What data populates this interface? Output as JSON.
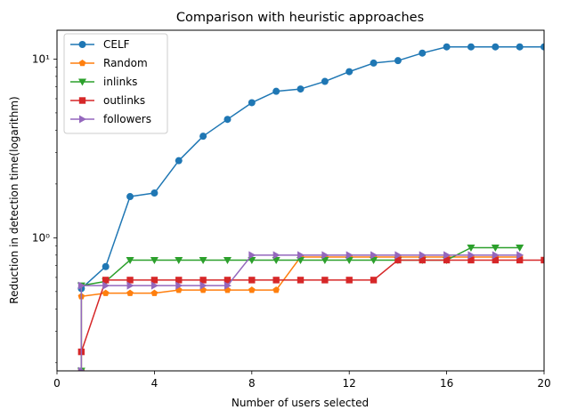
{
  "chart_data": {
    "type": "line",
    "title": "Comparison with heuristic approaches",
    "xlabel": "Number of users selected",
    "ylabel": "Reduction in detection time(logarithm)",
    "xlim": [
      0,
      20
    ],
    "ylim": [
      0.18,
      14.5
    ],
    "yscale": "log",
    "grid": false,
    "legend_position": "top-left",
    "x_ticks": [
      0,
      4,
      8,
      12,
      16,
      20
    ],
    "x_tick_labels": [
      "0",
      "4",
      "8",
      "12",
      "16",
      "20"
    ],
    "y_major_ticks": [
      1,
      10
    ],
    "y_tick_labels": [
      "10⁰",
      "10¹"
    ],
    "series": [
      {
        "name": "CELF",
        "color": "#1f77b4",
        "marker": "circle",
        "x": [
          1,
          2,
          3,
          4,
          5,
          6,
          7,
          8,
          9,
          10,
          11,
          12,
          13,
          14,
          15,
          16,
          17,
          18,
          19,
          20
        ],
        "y": [
          0.52,
          0.69,
          1.7,
          1.78,
          2.7,
          3.7,
          4.6,
          5.7,
          6.6,
          6.8,
          7.5,
          8.5,
          9.5,
          9.8,
          10.8,
          11.7,
          11.7,
          11.7,
          11.7,
          11.7
        ]
      },
      {
        "name": "Random",
        "color": "#ff7f0e",
        "marker": "pentagon",
        "x": [
          1,
          1,
          2,
          3,
          4,
          5,
          6,
          7,
          8,
          9,
          10,
          11,
          12,
          13,
          14,
          15,
          16,
          17,
          18,
          19
        ],
        "y": [
          0.18,
          0.47,
          0.49,
          0.49,
          0.49,
          0.51,
          0.51,
          0.51,
          0.51,
          0.51,
          0.78,
          0.78,
          0.78,
          0.78,
          0.78,
          0.78,
          0.78,
          0.78,
          0.78,
          0.78
        ]
      },
      {
        "name": "inlinks",
        "color": "#2ca02c",
        "marker": "triangle-down",
        "x": [
          1,
          1,
          2,
          3,
          4,
          5,
          6,
          7,
          8,
          9,
          10,
          11,
          12,
          13,
          14,
          15,
          16,
          17,
          18,
          19
        ],
        "y": [
          0.18,
          0.54,
          0.57,
          0.75,
          0.75,
          0.75,
          0.75,
          0.75,
          0.75,
          0.75,
          0.75,
          0.75,
          0.75,
          0.75,
          0.75,
          0.75,
          0.75,
          0.88,
          0.88,
          0.88
        ]
      },
      {
        "name": "outlinks",
        "color": "#d62728",
        "marker": "square",
        "x": [
          1,
          2,
          3,
          4,
          5,
          6,
          7,
          8,
          9,
          10,
          11,
          12,
          13,
          14,
          15,
          16,
          17,
          18,
          19,
          20
        ],
        "y": [
          0.23,
          0.58,
          0.58,
          0.58,
          0.58,
          0.58,
          0.58,
          0.58,
          0.58,
          0.58,
          0.58,
          0.58,
          0.58,
          0.75,
          0.75,
          0.75,
          0.75,
          0.75,
          0.75,
          0.75
        ]
      },
      {
        "name": "followers",
        "color": "#9467bd",
        "marker": "triangle-right",
        "x": [
          1,
          1,
          2,
          3,
          4,
          5,
          6,
          7,
          8,
          9,
          10,
          11,
          12,
          13,
          14,
          15,
          16,
          17,
          18,
          19
        ],
        "y": [
          0.18,
          0.54,
          0.54,
          0.54,
          0.54,
          0.54,
          0.54,
          0.54,
          0.8,
          0.8,
          0.8,
          0.8,
          0.8,
          0.8,
          0.8,
          0.8,
          0.8,
          0.8,
          0.8,
          0.8
        ]
      }
    ]
  }
}
